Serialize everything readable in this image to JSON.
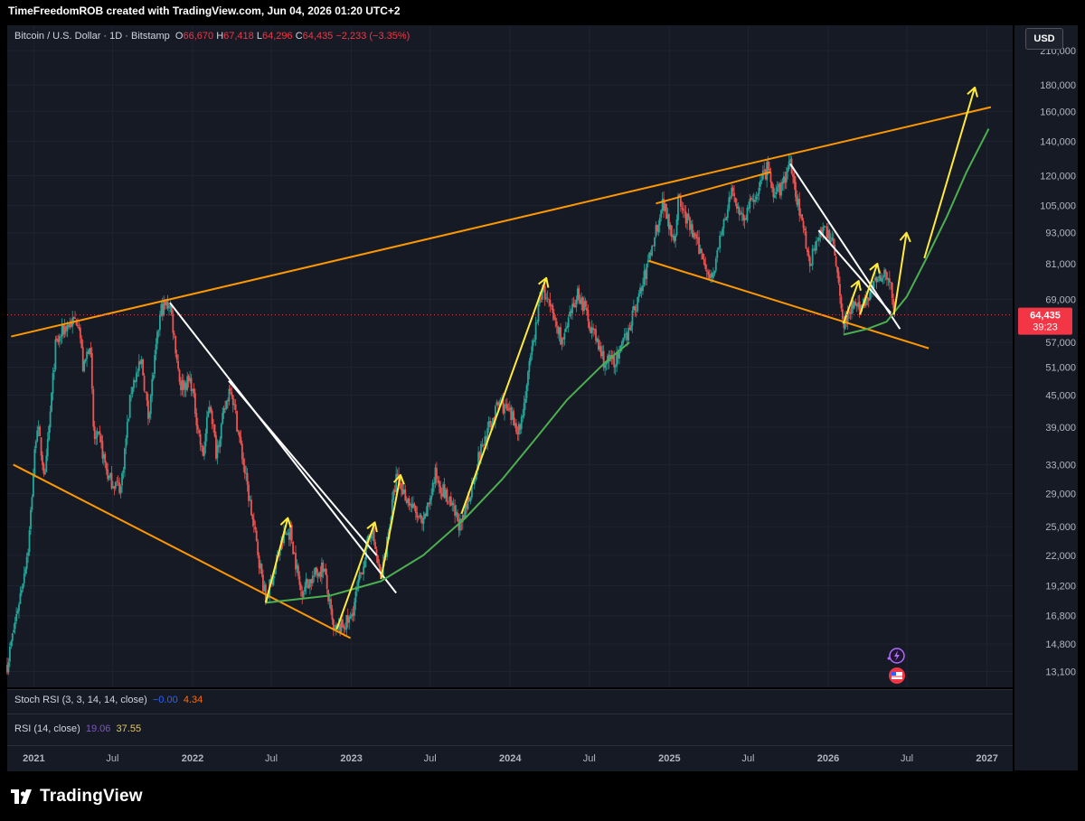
{
  "caption": "TimeFreedomROB created with TradingView.com, Jun 04, 2026 01:20 UTC+2",
  "symbol": {
    "name": "Bitcoin / U.S. Dollar · 1D · Bitstamp",
    "open_label": "O",
    "open": "66,670",
    "high_label": "H",
    "high": "67,418",
    "low_label": "L",
    "low": "64,296",
    "close_label": "C",
    "close": "64,435",
    "change": "−2,233 (−3.35%)"
  },
  "currency_button": "USD",
  "price_tag": {
    "price": "64,435",
    "countdown": "39:23"
  },
  "indicators": {
    "stoch_label": "Stoch RSI (3, 3, 14, 14, close)",
    "stoch_k": "−0.00",
    "stoch_d": "4.34",
    "rsi_label": "RSI (14, close)",
    "rsi_a": "19.06",
    "rsi_b": "37.55"
  },
  "brand": "TradingView",
  "colors": {
    "background": "#161a25",
    "up": "#26a69a",
    "down": "#ef5350",
    "trend_orange": "#ff9800",
    "trend_white": "#ffffff",
    "arrow_yellow": "#ffeb3b",
    "curve_green": "#4caf50",
    "price_tag": "#f23645"
  },
  "chart_data": {
    "type": "line",
    "title": "Bitcoin / U.S. Dollar · 1D · Bitstamp",
    "scale": "log",
    "ylim": [
      12200,
      235000
    ],
    "xlim": [
      "2020-11-01",
      "2027-03-01"
    ],
    "x_ticks": [
      {
        "label": "2021",
        "date": "2021-01-01"
      },
      {
        "label": "Jul",
        "date": "2021-07-01"
      },
      {
        "label": "2022",
        "date": "2022-01-01"
      },
      {
        "label": "Jul",
        "date": "2022-07-01"
      },
      {
        "label": "2023",
        "date": "2023-01-01"
      },
      {
        "label": "Jul",
        "date": "2023-07-01"
      },
      {
        "label": "2024",
        "date": "2024-01-01"
      },
      {
        "label": "Jul",
        "date": "2024-07-01"
      },
      {
        "label": "2025",
        "date": "2025-01-01"
      },
      {
        "label": "Jul",
        "date": "2025-07-01"
      },
      {
        "label": "2026",
        "date": "2026-01-01"
      },
      {
        "label": "Jul",
        "date": "2026-07-01"
      },
      {
        "label": "2027",
        "date": "2027-01-01"
      }
    ],
    "y_ticks": [
      "210,000",
      "180,000",
      "160,000",
      "140,000",
      "120,000",
      "105,000",
      "93,000",
      "81,000",
      "69,000",
      "57,000",
      "51,000",
      "45,000",
      "39,000",
      "33,000",
      "29,000",
      "25,000",
      "22,000",
      "19,200",
      "16,800",
      "14,800",
      "13,100"
    ],
    "last_price": 64435,
    "series": [
      {
        "values": [
          [
            "2020-11-01",
            13500
          ],
          [
            "2020-12-01",
            18500
          ],
          [
            "2020-12-20",
            23000
          ],
          [
            "2021-01-08",
            40000
          ],
          [
            "2021-01-27",
            31000
          ],
          [
            "2021-02-20",
            56000
          ],
          [
            "2021-03-13",
            61000
          ],
          [
            "2021-04-14",
            63500
          ],
          [
            "2021-04-25",
            50000
          ],
          [
            "2021-05-10",
            58000
          ],
          [
            "2021-05-19",
            37000
          ],
          [
            "2021-06-01",
            37000
          ],
          [
            "2021-06-22",
            31000
          ],
          [
            "2021-07-20",
            29800
          ],
          [
            "2021-08-14",
            47000
          ],
          [
            "2021-09-06",
            52000
          ],
          [
            "2021-09-21",
            41000
          ],
          [
            "2021-10-20",
            66000
          ],
          [
            "2021-11-10",
            68000
          ],
          [
            "2021-12-04",
            47000
          ],
          [
            "2021-12-28",
            48000
          ],
          [
            "2022-01-24",
            34000
          ],
          [
            "2022-02-10",
            44000
          ],
          [
            "2022-02-24",
            35000
          ],
          [
            "2022-03-29",
            47500
          ],
          [
            "2022-05-12",
            28000
          ],
          [
            "2022-06-18",
            18000
          ],
          [
            "2022-07-30",
            24000
          ],
          [
            "2022-08-14",
            24500
          ],
          [
            "2022-09-06",
            18800
          ],
          [
            "2022-10-29",
            21000
          ],
          [
            "2022-11-21",
            15600
          ],
          [
            "2022-12-30",
            16500
          ],
          [
            "2023-02-16",
            25000
          ],
          [
            "2023-03-10",
            19600
          ],
          [
            "2023-04-14",
            31000
          ],
          [
            "2023-06-15",
            25000
          ],
          [
            "2023-07-13",
            31500
          ],
          [
            "2023-09-11",
            24900
          ],
          [
            "2023-10-24",
            35000
          ],
          [
            "2023-12-08",
            44000
          ],
          [
            "2024-01-23",
            38500
          ],
          [
            "2024-03-14",
            73000
          ],
          [
            "2024-05-01",
            57000
          ],
          [
            "2024-06-05",
            71500
          ],
          [
            "2024-08-05",
            52000
          ],
          [
            "2024-09-06",
            53000
          ],
          [
            "2024-10-29",
            72500
          ],
          [
            "2024-12-17",
            107000
          ],
          [
            "2025-01-13",
            90000
          ],
          [
            "2025-01-21",
            108000
          ],
          [
            "2025-04-08",
            76000
          ],
          [
            "2025-05-22",
            111000
          ],
          [
            "2025-06-22",
            99000
          ],
          [
            "2025-08-14",
            124000
          ],
          [
            "2025-09-01",
            108000
          ],
          [
            "2025-10-06",
            126000
          ],
          [
            "2025-11-21",
            81000
          ],
          [
            "2025-12-10",
            94000
          ],
          [
            "2026-01-12",
            91000
          ],
          [
            "2026-02-05",
            62000
          ],
          [
            "2026-02-25",
            68000
          ],
          [
            "2026-03-15",
            66000
          ],
          [
            "2026-04-10",
            72000
          ],
          [
            "2026-05-06",
            79000
          ],
          [
            "2026-05-22",
            75000
          ],
          [
            "2026-06-04",
            64435
          ]
        ]
      }
    ],
    "annotations": {
      "trend_orange": [
        [
          [
            "2020-11-10",
            58500
          ],
          [
            "2027-01-10",
            163000
          ]
        ],
        [
          [
            "2020-11-15",
            33000
          ],
          [
            "2022-12-30",
            15200
          ]
        ],
        [
          [
            "2024-11-15",
            82000
          ],
          [
            "2026-08-20",
            55500
          ]
        ],
        [
          [
            "2024-12-01",
            106000
          ],
          [
            "2025-08-22",
            122000
          ]
        ]
      ],
      "trend_white": [
        [
          [
            "2021-11-10",
            68000
          ],
          [
            "2023-04-14",
            18600
          ]
        ],
        [
          [
            "2022-03-25",
            48000
          ],
          [
            "2023-02-28",
            22000
          ]
        ],
        [
          [
            "2025-10-06",
            126500
          ],
          [
            "2026-06-15",
            60500
          ]
        ],
        [
          [
            "2025-12-10",
            94000
          ],
          [
            "2026-05-25",
            65000
          ]
        ]
      ],
      "arrows_yellow": [
        [
          [
            "2022-06-18",
            17800
          ],
          [
            "2022-08-08",
            26000
          ]
        ],
        [
          [
            "2022-11-28",
            15800
          ],
          [
            "2023-02-24",
            25500
          ]
        ],
        [
          [
            "2023-03-10",
            19800
          ],
          [
            "2023-04-24",
            31500
          ]
        ],
        [
          [
            "2023-09-11",
            26500
          ],
          [
            "2024-03-24",
            76000
          ]
        ],
        [
          [
            "2026-02-05",
            62000
          ],
          [
            "2026-03-12",
            75000
          ]
        ],
        [
          [
            "2026-03-15",
            64500
          ],
          [
            "2026-04-24",
            81000
          ]
        ],
        [
          [
            "2026-06-01",
            64500
          ],
          [
            "2026-06-30",
            93000
          ]
        ],
        [
          [
            "2026-08-10",
            83000
          ],
          [
            "2026-12-04",
            178000
          ]
        ]
      ],
      "curve_green": [
        [
          "2022-06-18",
          17800
        ],
        [
          "2022-11-15",
          18400
        ],
        [
          "2023-03-10",
          19600
        ],
        [
          "2023-06-15",
          22000
        ],
        [
          "2023-09-20",
          26000
        ],
        [
          "2023-12-15",
          31000
        ],
        [
          "2024-02-22",
          36500
        ],
        [
          "2024-05-10",
          44000
        ],
        [
          "2024-08-05",
          52000
        ],
        [
          "2024-10-01",
          57000
        ],
        [
          "2026-02-05",
          59000
        ],
        [
          "2026-04-01",
          60500
        ],
        [
          "2026-05-15",
          62500
        ],
        [
          "2026-07-01",
          70000
        ],
        [
          "2026-08-15",
          83000
        ],
        [
          "2026-10-01",
          100000
        ],
        [
          "2026-11-15",
          122000
        ],
        [
          "2027-01-05",
          148000
        ]
      ]
    }
  }
}
